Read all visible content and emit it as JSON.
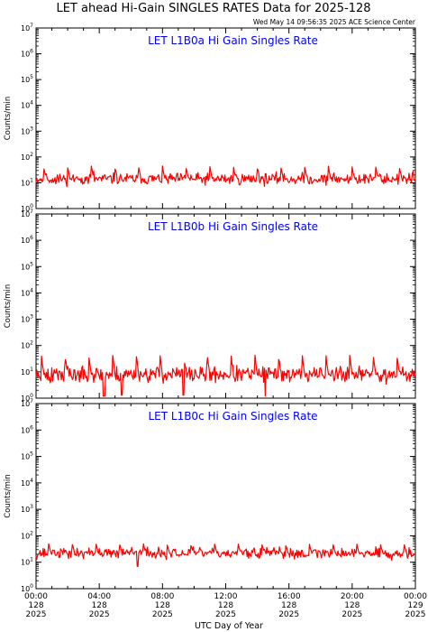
{
  "figure": {
    "title": "LET ahead Hi-Gain SINGLES RATES Data for 2025-128",
    "timestamp": "Wed May 14 09:56:35 2025 ACE Science Center",
    "x_axis_label": "UTC Day of Year",
    "y_axis_label": "Counts/min"
  },
  "colors": {
    "trace": "#ff0000",
    "panel_title": "#0000ff",
    "axes": "#000000",
    "background": "#ffffff"
  },
  "x_ticks": [
    {
      "time": "00:00",
      "day": "128",
      "year": "2025",
      "hours": 0
    },
    {
      "time": "04:00",
      "day": "128",
      "year": "2025",
      "hours": 4
    },
    {
      "time": "08:00",
      "day": "128",
      "year": "2025",
      "hours": 8
    },
    {
      "time": "12:00",
      "day": "128",
      "year": "2025",
      "hours": 12
    },
    {
      "time": "16:00",
      "day": "128",
      "year": "2025",
      "hours": 16
    },
    {
      "time": "20:00",
      "day": "128",
      "year": "2025",
      "hours": 20
    },
    {
      "time": "00:00",
      "day": "129",
      "year": "2025",
      "hours": 24
    }
  ],
  "chart_data": [
    {
      "type": "line",
      "title": "LET L1B0a Hi Gain Singles Rate",
      "ylabel": "Counts/min",
      "yscale": "log",
      "ylim": [
        1,
        10000000
      ],
      "xlim_hours": [
        0,
        24
      ],
      "y_tick_exponents": [
        0,
        1,
        2,
        3,
        4,
        5,
        6,
        7
      ],
      "baseline": 14,
      "spread": 0.22,
      "spike_value": 45,
      "spike_phase_h": 0.5,
      "spike_period_h": 1.5,
      "spike_width_h": 0.15,
      "seed": 11,
      "series": [
        {
          "x_hours": [],
          "y": []
        }
      ]
    },
    {
      "type": "line",
      "title": "LET L1B0b Hi Gain Singles Rate",
      "ylabel": "Counts/min",
      "yscale": "log",
      "ylim": [
        1,
        10000000
      ],
      "xlim_hours": [
        0,
        24
      ],
      "y_tick_exponents": [
        0,
        1,
        2,
        3,
        4,
        5,
        6,
        7
      ],
      "baseline": 8,
      "spread": 0.3,
      "spike_value": 45,
      "spike_phase_h": 0.35,
      "spike_period_h": 1.5,
      "spike_width_h": 0.15,
      "dips": [
        {
          "hours": 4.3,
          "value": 1.2
        },
        {
          "hours": 5.4,
          "value": 1.3
        },
        {
          "hours": 9.3,
          "value": 1.3
        },
        {
          "hours": 14.5,
          "value": 1.2
        }
      ],
      "seed": 23,
      "series": [
        {
          "x_hours": [],
          "y": []
        }
      ]
    },
    {
      "type": "line",
      "title": "LET L1B0c Hi Gain Singles Rate",
      "ylabel": "Counts/min",
      "yscale": "log",
      "ylim": [
        1,
        10000000
      ],
      "xlim_hours": [
        0,
        24
      ],
      "y_tick_exponents": [
        0,
        1,
        2,
        3,
        4,
        5,
        6,
        7
      ],
      "baseline": 22,
      "spread": 0.2,
      "spike_value": 50,
      "spike_phase_h": 0.8,
      "spike_period_h": 1.5,
      "spike_width_h": 0.15,
      "dips": [
        {
          "hours": 6.4,
          "value": 7
        }
      ],
      "seed": 37,
      "series": [
        {
          "x_hours": [],
          "y": []
        }
      ]
    }
  ]
}
